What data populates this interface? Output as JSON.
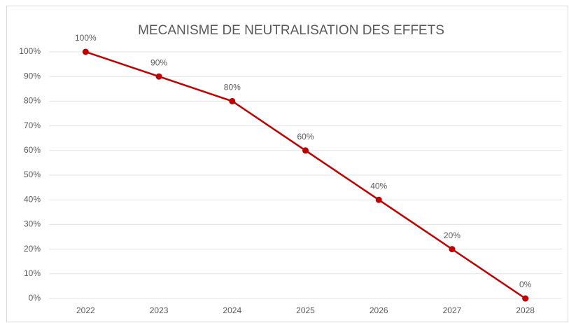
{
  "chart_data": {
    "type": "line",
    "title": "MECANISME DE NEUTRALISATION DES EFFETS",
    "categories": [
      "2022",
      "2023",
      "2024",
      "2025",
      "2026",
      "2027",
      "2028"
    ],
    "values": [
      100,
      90,
      80,
      60,
      40,
      20,
      0
    ],
    "value_labels": [
      "100%",
      "90%",
      "80%",
      "60%",
      "40%",
      "20%",
      "0%"
    ],
    "color": "#c00000",
    "ylim": [
      0,
      100
    ],
    "yticks": [
      {
        "value": 0,
        "label": "0%"
      },
      {
        "value": 10,
        "label": "10%"
      },
      {
        "value": 20,
        "label": "20%"
      },
      {
        "value": 30,
        "label": "30%"
      },
      {
        "value": 40,
        "label": "40%"
      },
      {
        "value": 50,
        "label": "50%"
      },
      {
        "value": 60,
        "label": "60%"
      },
      {
        "value": 70,
        "label": "70%"
      },
      {
        "value": 80,
        "label": "80%"
      },
      {
        "value": 90,
        "label": "90%"
      },
      {
        "value": 100,
        "label": "100%"
      }
    ],
    "grid": true
  }
}
